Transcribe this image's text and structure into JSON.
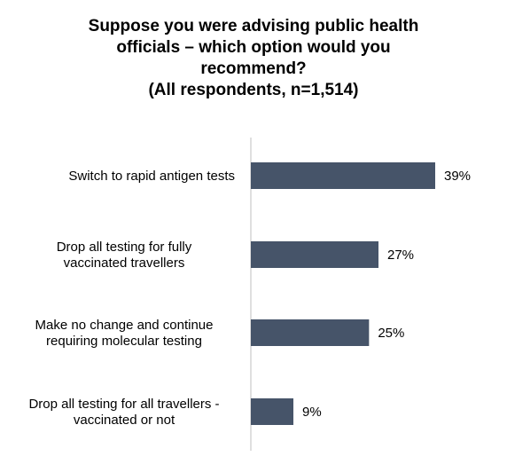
{
  "chart_data": {
    "type": "bar",
    "orientation": "horizontal",
    "title_lines": [
      "Suppose you were advising public health",
      "officials – which option would you",
      "recommend?",
      "(All respondents, n=1,514)"
    ],
    "categories": [
      [
        "Switch to rapid antigen tests"
      ],
      [
        "Drop all testing for fully",
        "vaccinated travellers"
      ],
      [
        "Make no change and continue",
        "requiring molecular testing"
      ],
      [
        "Drop all testing for all travellers -",
        "vaccinated or not"
      ]
    ],
    "values": [
      39,
      27,
      25,
      9
    ],
    "value_labels": [
      "39%",
      "27%",
      "25%",
      "9%"
    ],
    "xlim": [
      0,
      39
    ],
    "bar_color": "#465469",
    "axis_color": "#bfbfbf",
    "grid": false,
    "legend": "none"
  }
}
